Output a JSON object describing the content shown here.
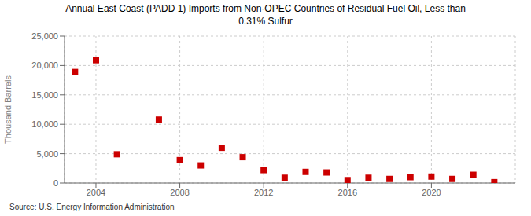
{
  "chart_data": {
    "type": "scatter",
    "title": "Annual East Coast (PADD 1) Imports from Non-OPEC Countries of Residual Fuel Oil, Less than\n0.31% Sulfur",
    "ylabel": "Thousand Barrels",
    "annotations": [
      "Source: U.S. Energy Information Administration"
    ],
    "x": [
      2003,
      2004,
      2005,
      2007,
      2008,
      2009,
      2010,
      2011,
      2012,
      2013,
      2014,
      2015,
      2016,
      2017,
      2018,
      2019,
      2020,
      2021,
      2022,
      2023
    ],
    "values": [
      18900,
      20900,
      4900,
      10800,
      3900,
      3000,
      6000,
      4400,
      2200,
      900,
      1900,
      1800,
      500,
      900,
      700,
      1000,
      1100,
      700,
      1400,
      150
    ],
    "color": "#cc0000",
    "marker": "square",
    "xlim": [
      2002.5,
      2024
    ],
    "xticks": [
      2004,
      2008,
      2012,
      2016,
      2020
    ],
    "ylim": [
      0,
      25000
    ],
    "yticks": [
      0,
      {
        "value": 5000,
        "label": "5,000"
      },
      {
        "value": 10000,
        "label": "10,000"
      },
      {
        "value": 15000,
        "label": "15,000"
      },
      {
        "value": 20000,
        "label": "20,000"
      },
      {
        "value": 25000,
        "label": "25,000"
      }
    ],
    "grid": true
  }
}
